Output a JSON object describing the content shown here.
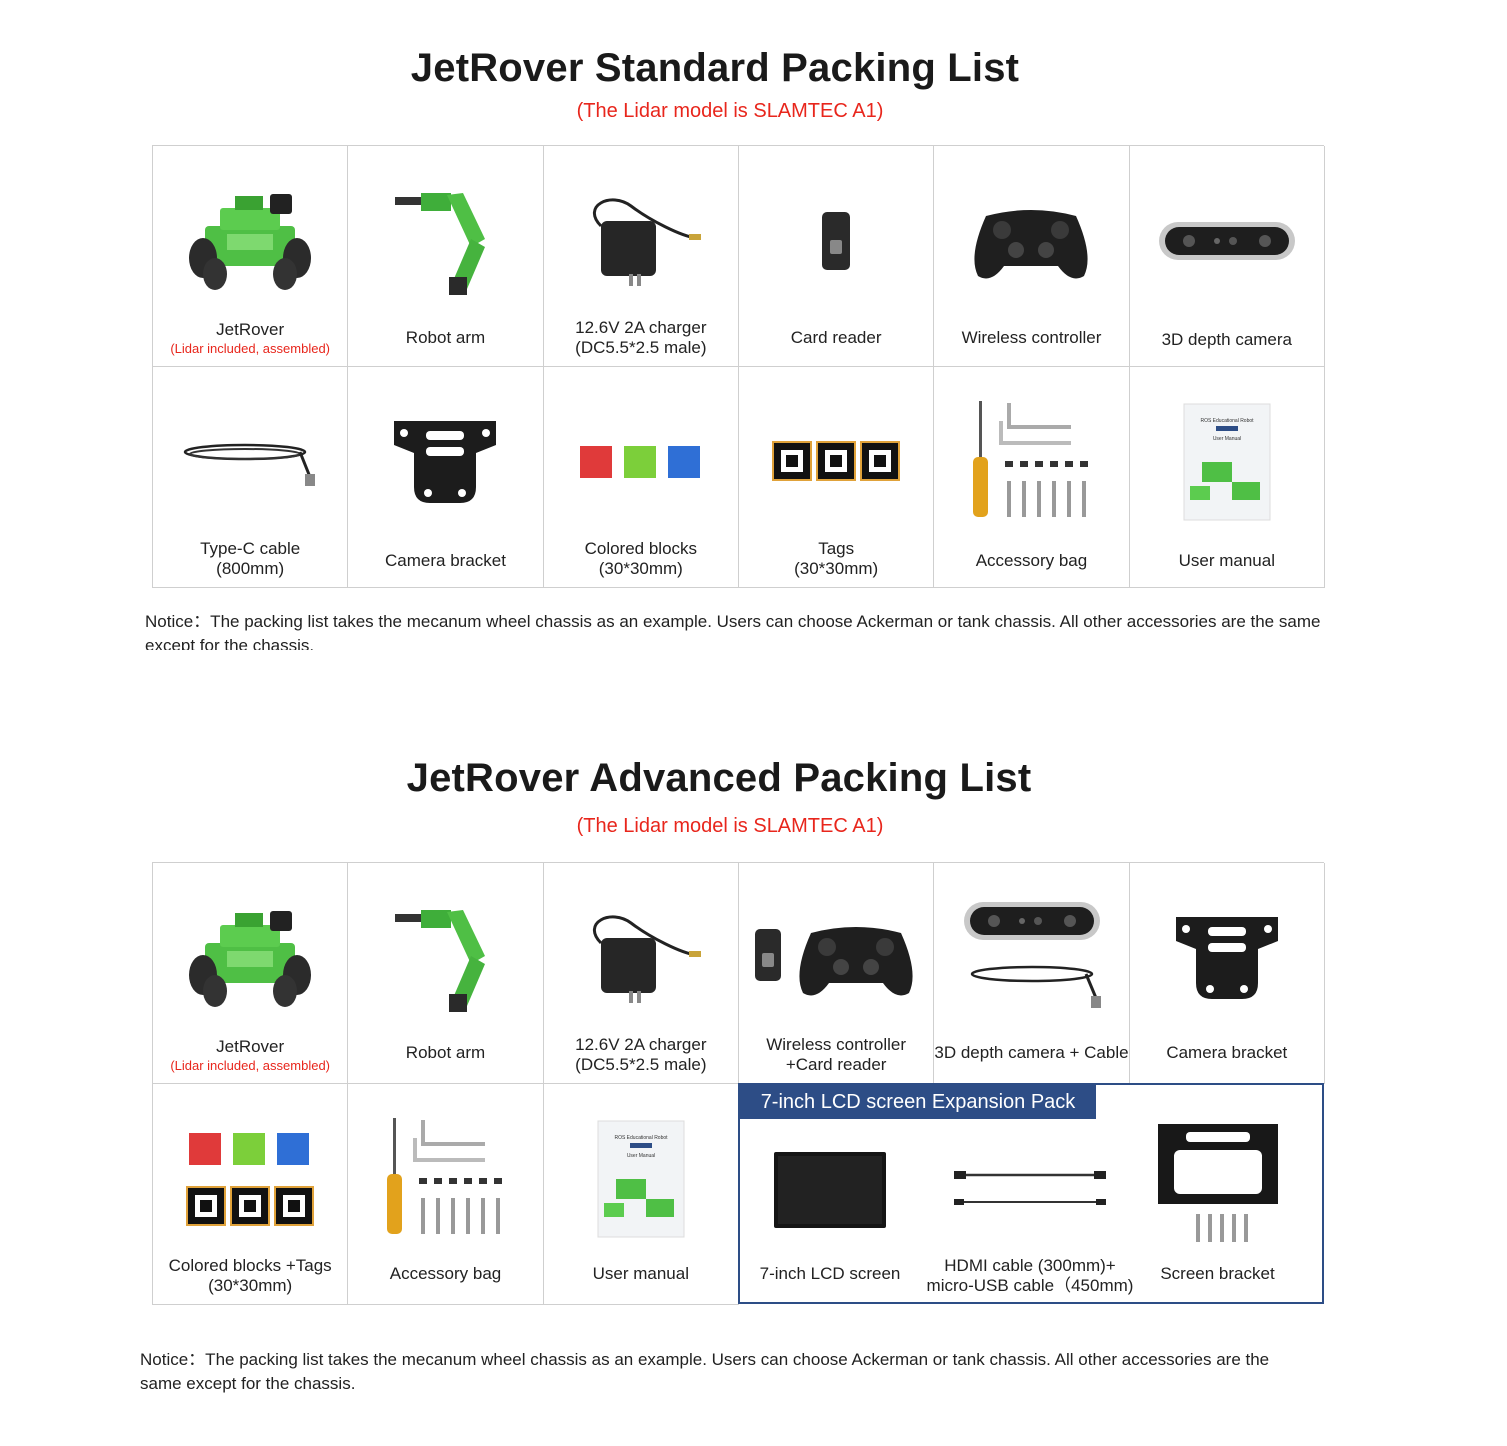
{
  "standard": {
    "title": "JetRover Standard Packing List",
    "subtitle": "(The Lidar model is SLAMTEC A1)",
    "items": [
      {
        "label": "JetRover",
        "note": "(Lidar included, assembled)",
        "icon": "robot-car-icon"
      },
      {
        "label": "Robot arm",
        "icon": "robot-arm-icon"
      },
      {
        "label": "12.6V 2A charger",
        "label2": "(DC5.5*2.5 male)",
        "icon": "charger-icon"
      },
      {
        "label": "Card reader",
        "icon": "card-reader-icon"
      },
      {
        "label": "Wireless controller",
        "icon": "gamepad-icon"
      },
      {
        "label": "3D depth camera",
        "icon": "depth-camera-icon"
      },
      {
        "label": "Type-C cable",
        "label2": "(800mm)",
        "icon": "cable-icon"
      },
      {
        "label": "Camera bracket",
        "icon": "bracket-icon"
      },
      {
        "label": "Colored blocks",
        "label2": "(30*30mm)",
        "icon": "blocks-icon"
      },
      {
        "label": "Tags",
        "label2": "(30*30mm)",
        "icon": "tags-icon"
      },
      {
        "label": "Accessory bag",
        "icon": "accessory-bag-icon"
      },
      {
        "label": "User manual",
        "icon": "manual-icon"
      }
    ],
    "notice": "Notice：The packing list takes the mecanum wheel chassis as an example. Users can choose Ackerman or tank chassis. All other accessories are the same except for the chassis."
  },
  "advanced": {
    "title": "JetRover Advanced Packing List",
    "subtitle": "(The Lidar model is SLAMTEC A1)",
    "items": [
      {
        "label": "JetRover",
        "note": "(Lidar included, assembled)",
        "icon": "robot-car-icon"
      },
      {
        "label": "Robot arm",
        "icon": "robot-arm-icon"
      },
      {
        "label": "12.6V 2A charger",
        "label2": "(DC5.5*2.5 male)",
        "icon": "charger-icon"
      },
      {
        "label": "Wireless controller",
        "label2": "+Card reader",
        "icon": "gamepad-icon"
      },
      {
        "label": "3D depth camera + Cable",
        "icon": "depth-camera-icon"
      },
      {
        "label": "Camera bracket",
        "icon": "bracket-icon"
      },
      {
        "label": "Colored blocks +Tags",
        "label2": "(30*30mm)",
        "icon": "blocks-icon"
      },
      {
        "label": "Accessory bag",
        "icon": "accessory-bag-icon"
      },
      {
        "label": "User manual",
        "icon": "manual-icon"
      }
    ],
    "expansion": {
      "title": "7-inch LCD screen Expansion Pack",
      "items": [
        {
          "label": "7-inch LCD screen",
          "icon": "lcd-screen-icon"
        },
        {
          "label": "HDMI cable (300mm)+",
          "label2": "micro-USB cable（450mm)",
          "icon": "hdmi-cable-icon"
        },
        {
          "label": "Screen bracket",
          "icon": "screen-bracket-icon"
        }
      ]
    },
    "notice": "Notice：The packing list takes the mecanum wheel chassis as an example. Users can choose Ackerman or tank chassis. All other accessories are the same except for the chassis."
  },
  "manual_cover": {
    "line1": "ROS Educational Robot",
    "line2": "JetRover",
    "line3": "User Manual"
  },
  "colors": {
    "accent_red": "#e8261c",
    "expansion_blue": "#2d4d86",
    "robot_green": "#4fbf45"
  }
}
